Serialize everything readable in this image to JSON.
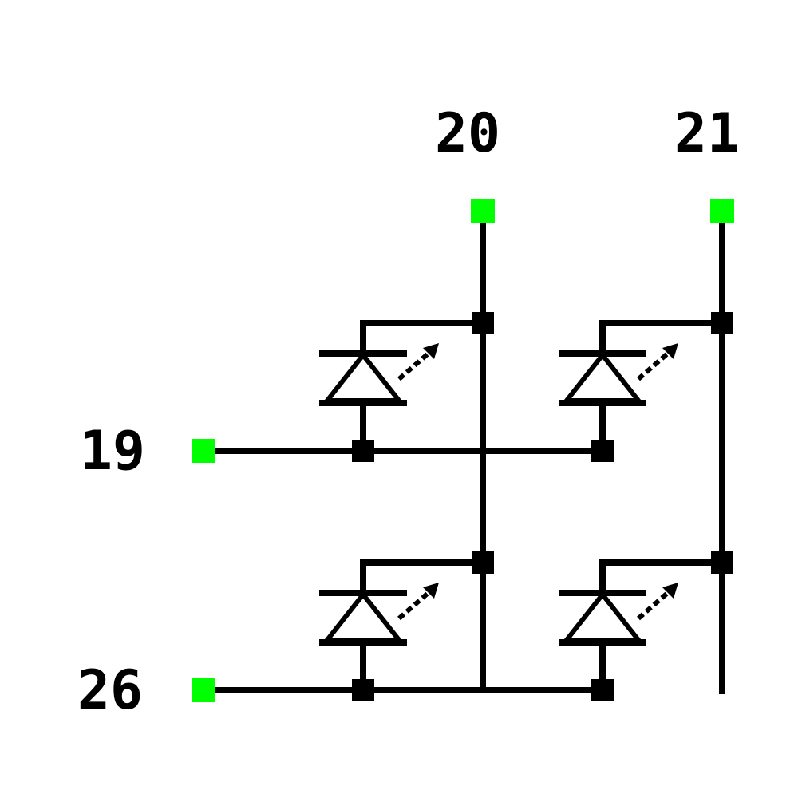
{
  "pins": [
    {
      "id": "pin-19",
      "label": "19"
    },
    {
      "id": "pin-20",
      "label": "20"
    },
    {
      "id": "pin-21",
      "label": "21"
    },
    {
      "id": "pin-26",
      "label": "26"
    }
  ],
  "colors": {
    "pin_marker": "#00ff00",
    "wire": "#000000",
    "background": "#ffffff"
  },
  "components": [
    {
      "type": "led",
      "count": 4,
      "icon": "led-diode-icon"
    }
  ]
}
